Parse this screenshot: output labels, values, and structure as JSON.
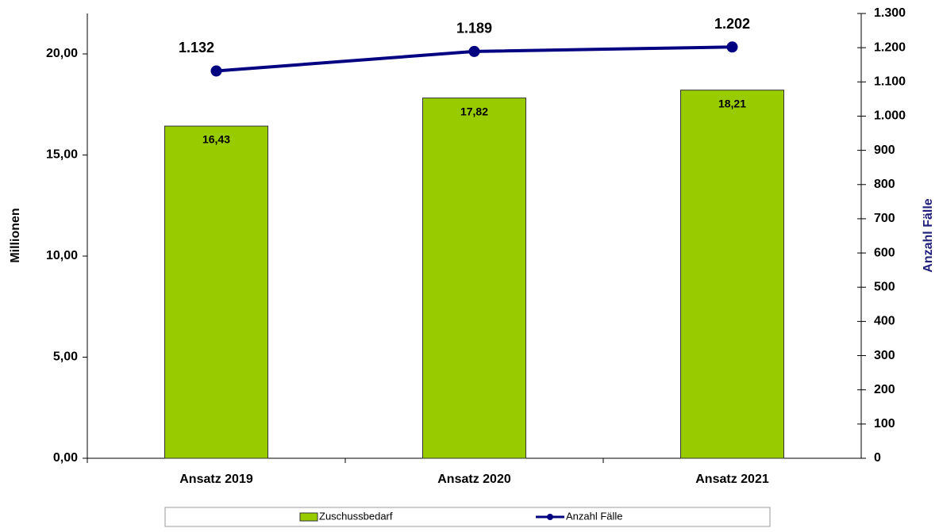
{
  "chart_data": {
    "type": "bar+line",
    "categories": [
      "Ansatz 2019",
      "Ansatz 2020",
      "Ansatz 2021"
    ],
    "ylabel": "Millionen",
    "y2label": "Anzahl Fälle",
    "ylim": [
      0,
      22
    ],
    "yticks": [
      {
        "value": 0,
        "label": "0,00"
      },
      {
        "value": 5,
        "label": "5,00"
      },
      {
        "value": 10,
        "label": "10,00"
      },
      {
        "value": 15,
        "label": "15,00"
      },
      {
        "value": 20,
        "label": "20,00"
      }
    ],
    "y2lim": [
      0,
      1300
    ],
    "y2ticks": [
      0,
      100,
      200,
      300,
      400,
      500,
      600,
      700,
      800,
      900,
      {
        "value": 1000,
        "label": "1.000"
      },
      {
        "value": 1100,
        "label": "1.100"
      },
      {
        "value": 1200,
        "label": "1.200"
      },
      {
        "value": 1300,
        "label": "1.300"
      }
    ],
    "series": [
      {
        "name": "Zuschussbedarf",
        "type": "bar",
        "color": "#99cc00",
        "values": [
          16.43,
          17.82,
          18.21
        ],
        "value_labels": [
          "16,43",
          "17,82",
          "18,21"
        ]
      },
      {
        "name": "Anzahl Fälle",
        "type": "line",
        "axis": "y2",
        "color": "#000080",
        "values": [
          1132,
          1189,
          1202
        ],
        "value_labels": [
          "1.132",
          "1.189",
          "1.202"
        ]
      }
    ]
  }
}
